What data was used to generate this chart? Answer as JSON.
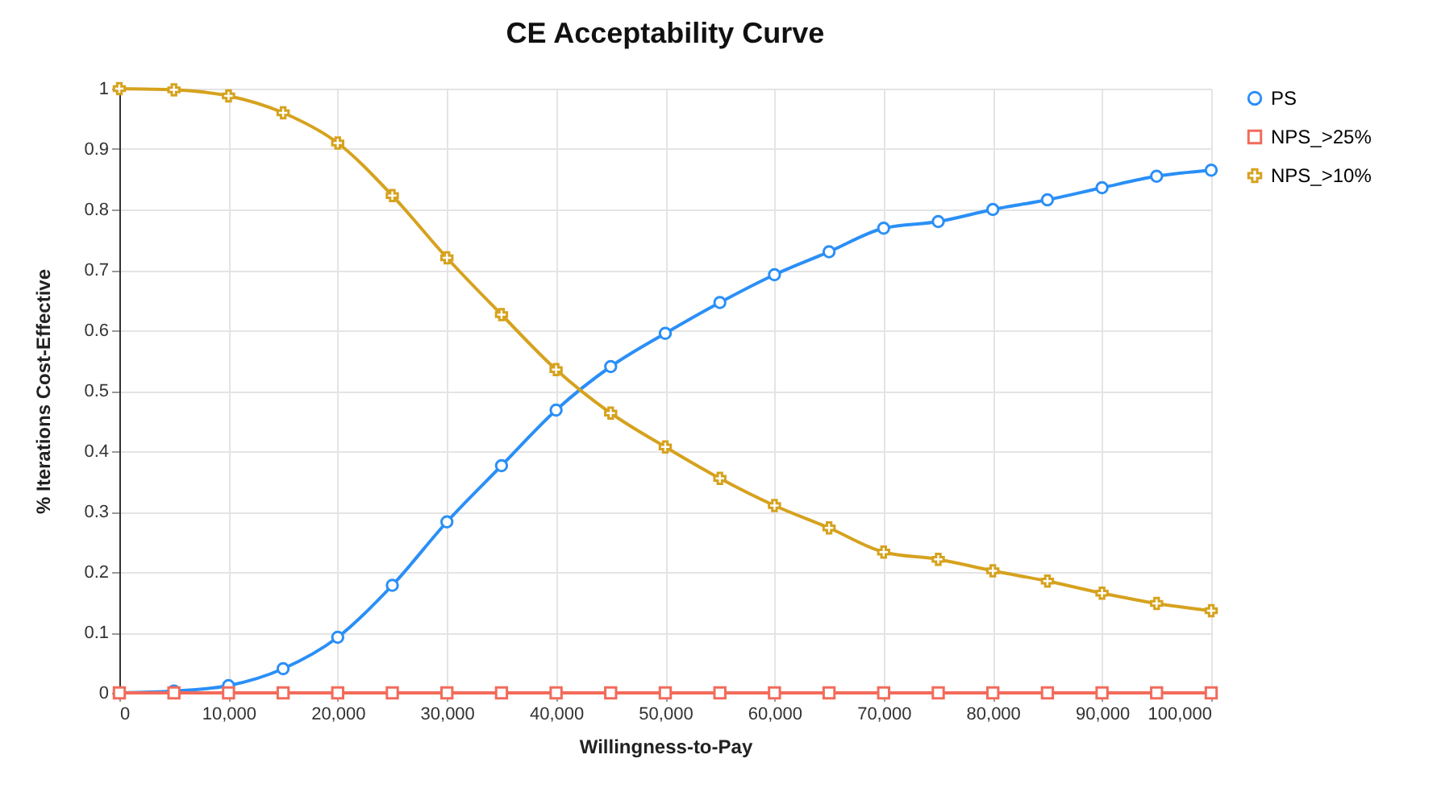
{
  "chart_data": {
    "type": "line",
    "title": "CE Acceptability Curve",
    "xlabel": "Willingness-to-Pay",
    "ylabel": "% Iterations Cost-Effective",
    "x": [
      0,
      5000,
      10000,
      15000,
      20000,
      25000,
      30000,
      35000,
      40000,
      45000,
      50000,
      55000,
      60000,
      65000,
      70000,
      75000,
      80000,
      85000,
      90000,
      95000,
      100000
    ],
    "series": [
      {
        "name": "PS",
        "color": "#2a8ff7",
        "marker": "circle",
        "values": [
          0,
          0.003,
          0.012,
          0.04,
          0.092,
          0.178,
          0.283,
          0.376,
          0.468,
          0.54,
          0.595,
          0.646,
          0.692,
          0.73,
          0.769,
          0.78,
          0.8,
          0.816,
          0.836,
          0.855,
          0.865
        ]
      },
      {
        "name": "NPS_>25%",
        "color": "#f26b5b",
        "marker": "square",
        "values": [
          0,
          0,
          0,
          0,
          0,
          0,
          0,
          0,
          0,
          0,
          0,
          0,
          0,
          0,
          0,
          0,
          0,
          0,
          0,
          0,
          0
        ]
      },
      {
        "name": "NPS_>10%",
        "color": "#d6a21e",
        "marker": "cross",
        "values": [
          1,
          0.998,
          0.988,
          0.96,
          0.91,
          0.823,
          0.72,
          0.626,
          0.535,
          0.463,
          0.407,
          0.355,
          0.31,
          0.273,
          0.233,
          0.221,
          0.202,
          0.185,
          0.165,
          0.148,
          0.136
        ]
      }
    ],
    "xlim": [
      0,
      100000
    ],
    "xticks": [
      {
        "value": 0,
        "label": "0"
      },
      {
        "value": 10000,
        "label": "10,000"
      },
      {
        "value": 20000,
        "label": "20,000"
      },
      {
        "value": 30000,
        "label": "30,000"
      },
      {
        "value": 40000,
        "label": "40,000"
      },
      {
        "value": 50000,
        "label": "50,000"
      },
      {
        "value": 60000,
        "label": "60,000"
      },
      {
        "value": 70000,
        "label": "70,000"
      },
      {
        "value": 80000,
        "label": "80,000"
      },
      {
        "value": 90000,
        "label": "90,000"
      },
      {
        "value": 100000,
        "label": "100,000"
      }
    ],
    "ylim": [
      0,
      1
    ],
    "yticks": [
      0,
      0.1,
      0.2,
      0.3,
      0.4,
      0.5,
      0.6,
      0.7,
      0.8,
      0.9,
      1
    ],
    "grid": true,
    "legend": "top right",
    "line_style": "solid"
  }
}
